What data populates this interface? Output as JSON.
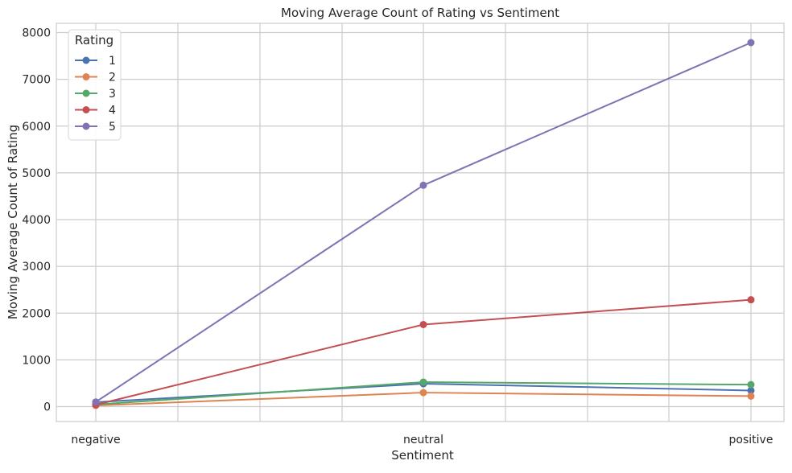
{
  "chart_data": {
    "type": "line",
    "title": "Moving Average Count of Rating vs Sentiment",
    "xlabel": "Sentiment",
    "ylabel": "Moving Average Count of Rating",
    "categories": [
      "negative",
      "neutral",
      "positive"
    ],
    "ylim": [
      -350,
      8050
    ],
    "yticks": [
      0,
      1000,
      2000,
      3000,
      4000,
      5000,
      6000,
      7000,
      8000
    ],
    "grid": true,
    "legend": {
      "title": "Rating",
      "position": "top-left"
    },
    "series": [
      {
        "name": "1",
        "color": "#4C72B0",
        "values": [
          95,
          490,
          345
        ]
      },
      {
        "name": "2",
        "color": "#DD8452",
        "values": [
          25,
          300,
          225
        ]
      },
      {
        "name": "3",
        "color": "#55A868",
        "values": [
          45,
          525,
          470
        ]
      },
      {
        "name": "4",
        "color": "#C44E52",
        "values": [
          40,
          1755,
          2285
        ]
      },
      {
        "name": "5",
        "color": "#8172B3",
        "values": [
          100,
          4735,
          7785
        ]
      }
    ]
  }
}
